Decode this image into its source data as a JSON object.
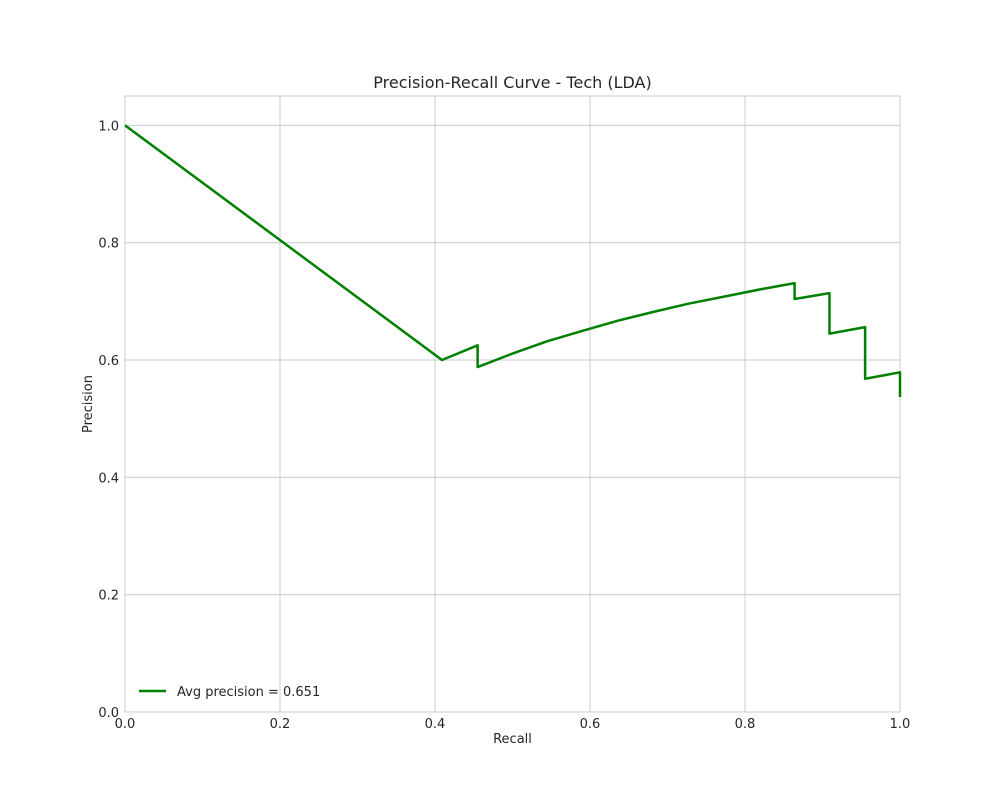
{
  "chart_data": {
    "type": "line",
    "title": "Precision-Recall Curve - Tech (LDA)",
    "xlabel": "Recall",
    "ylabel": "Precision",
    "xlim": [
      0.0,
      1.0
    ],
    "ylim": [
      0.0,
      1.05
    ],
    "xticks": [
      "0.0",
      "0.2",
      "0.4",
      "0.6",
      "0.8",
      "1.0"
    ],
    "yticks": [
      "0.0",
      "0.2",
      "0.4",
      "0.6",
      "0.8",
      "1.0"
    ],
    "grid": true,
    "legend_position": "lower-left",
    "series": [
      {
        "name": "Avg precision = 0.651",
        "color": "#008000",
        "x": [
          0.0,
          0.409,
          0.455,
          0.455,
          0.5,
          0.545,
          0.591,
          0.636,
          0.682,
          0.727,
          0.773,
          0.818,
          0.864,
          0.864,
          0.909,
          0.909,
          0.955,
          0.955,
          1.0,
          1.0
        ],
        "y": [
          1.0,
          0.6,
          0.625,
          0.588,
          0.611,
          0.632,
          0.65,
          0.667,
          0.682,
          0.696,
          0.708,
          0.72,
          0.731,
          0.704,
          0.714,
          0.645,
          0.656,
          0.568,
          0.579,
          0.537
        ]
      }
    ]
  }
}
